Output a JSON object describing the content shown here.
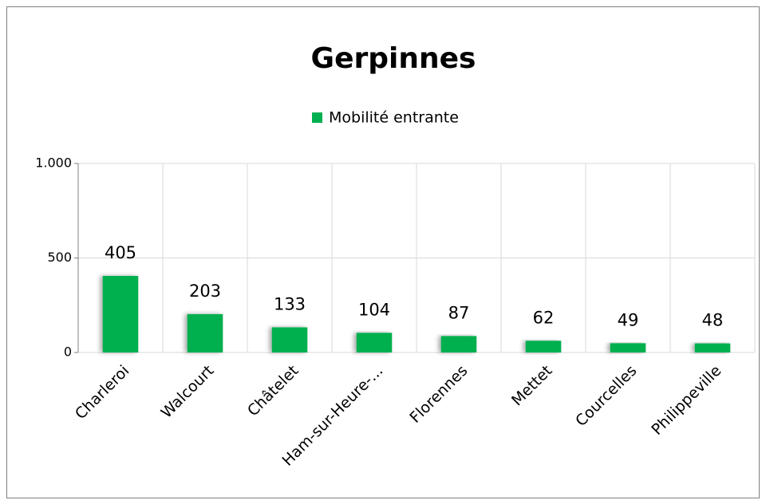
{
  "chart_data": {
    "type": "bar",
    "title": "Gerpinnes",
    "series": [
      {
        "name": "Mobilité entrante",
        "color": "#00b050",
        "values": [
          405,
          203,
          133,
          104,
          87,
          62,
          49,
          48
        ]
      }
    ],
    "categories": [
      "Charleroi",
      "Walcourt",
      "Châtelet",
      "Ham-sur-Heure-...",
      "Florennes",
      "Mettet",
      "Courcelles",
      "Philippeville"
    ],
    "ylim": [
      0,
      1000
    ],
    "yticks": [
      0,
      500,
      {
        "value": 1000,
        "label": "1.000"
      }
    ],
    "grid": true,
    "legend": "top"
  }
}
